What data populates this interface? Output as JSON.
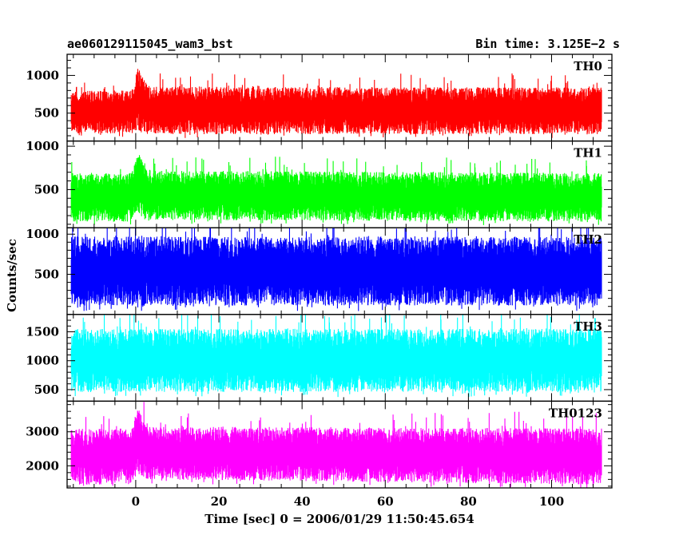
{
  "header": {
    "left_title": "ae060129115045_wam3_bst",
    "right_title": "Bin time: 3.125E−2 s"
  },
  "chart_data": {
    "type": "line",
    "xlabel": "Time [sec] 0 = 2006/01/29 11:50:45.654",
    "ylabel": "Counts/sec",
    "xlim": [
      -16.5,
      114.5
    ],
    "x_ticks": [
      0,
      20,
      40,
      60,
      80,
      100
    ],
    "data_x_range": [
      -15.5,
      112
    ],
    "bin_time_s": 0.03125,
    "grid": false,
    "panels": [
      {
        "name": "TH0",
        "color": "#ff0000",
        "ylim": [
          130,
          1280
        ],
        "y_ticks": [
          500,
          1000
        ],
        "baseline": [
          [
            -15.5,
            230
          ],
          [
            -1,
            230
          ],
          [
            0,
            250
          ],
          [
            0.5,
            300
          ],
          [
            1,
            250
          ],
          [
            2,
            220
          ],
          [
            112,
            220
          ]
        ],
        "peak": [
          [
            -15.5,
            800
          ],
          [
            -1,
            800
          ],
          [
            0,
            900
          ],
          [
            0.5,
            1100
          ],
          [
            1.5,
            1000
          ],
          [
            3,
            850
          ],
          [
            112,
            840
          ]
        ]
      },
      {
        "name": "TH1",
        "color": "#00ff00",
        "ylim": [
          60,
          1060
        ],
        "y_ticks": [
          500,
          1000
        ],
        "baseline": [
          [
            -15.5,
            130
          ],
          [
            -1,
            130
          ],
          [
            0.5,
            250
          ],
          [
            2,
            150
          ],
          [
            112,
            130
          ]
        ],
        "peak": [
          [
            -15.5,
            690
          ],
          [
            -1,
            690
          ],
          [
            0.5,
            930
          ],
          [
            2,
            820
          ],
          [
            4,
            720
          ],
          [
            112,
            690
          ]
        ]
      },
      {
        "name": "TH2",
        "color": "#0000ff",
        "ylim": [
          0,
          1080
        ],
        "y_ticks": [
          500,
          1000
        ],
        "baseline": [
          [
            -15.5,
            110
          ],
          [
            112,
            110
          ]
        ],
        "peak": [
          [
            -15.5,
            970
          ],
          [
            112,
            970
          ]
        ]
      },
      {
        "name": "TH3",
        "color": "#00ffff",
        "ylim": [
          300,
          1800
        ],
        "y_ticks": [
          500,
          1000,
          1500
        ],
        "baseline": [
          [
            -15.5,
            460
          ],
          [
            112,
            460
          ]
        ],
        "peak": [
          [
            -15.5,
            1550
          ],
          [
            112,
            1550
          ]
        ]
      },
      {
        "name": "TH0123",
        "color": "#ff00ff",
        "ylim": [
          1350,
          3900
        ],
        "y_ticks": [
          2000,
          3000
        ],
        "baseline": [
          [
            -15.5,
            1450
          ],
          [
            -1,
            1450
          ],
          [
            0.5,
            1750
          ],
          [
            2,
            1600
          ],
          [
            112,
            1450
          ]
        ],
        "peak": [
          [
            -15.5,
            3100
          ],
          [
            -1,
            3100
          ],
          [
            0.5,
            3750
          ],
          [
            2,
            3350
          ],
          [
            4,
            3150
          ],
          [
            112,
            3100
          ]
        ]
      }
    ]
  }
}
